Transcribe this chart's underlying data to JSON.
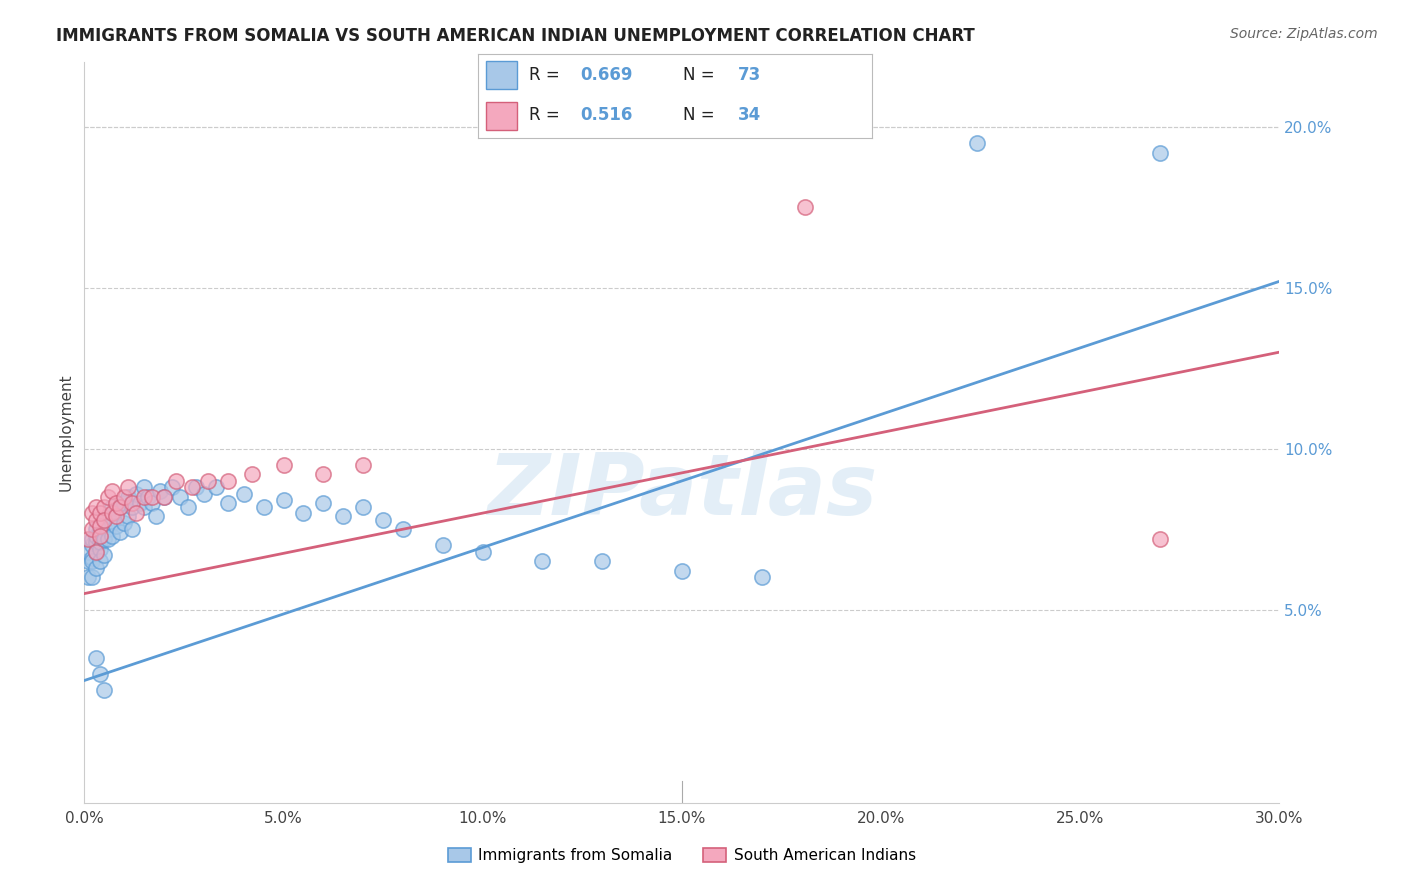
{
  "title": "IMMIGRANTS FROM SOMALIA VS SOUTH AMERICAN INDIAN UNEMPLOYMENT CORRELATION CHART",
  "source": "Source: ZipAtlas.com",
  "ylabel": "Unemployment",
  "watermark": "ZIPatlas",
  "xlim": [
    0.0,
    0.3
  ],
  "ylim": [
    -0.01,
    0.22
  ],
  "xticks": [
    0.0,
    0.05,
    0.1,
    0.15,
    0.2,
    0.25,
    0.3
  ],
  "xtick_labels": [
    "0.0%",
    "5.0%",
    "10.0%",
    "15.0%",
    "20.0%",
    "25.0%",
    "30.0%"
  ],
  "yticks_right": [
    0.05,
    0.1,
    0.15,
    0.2
  ],
  "ytick_labels_right": [
    "5.0%",
    "10.0%",
    "15.0%",
    "20.0%"
  ],
  "series1_color": "#a8c8e8",
  "series1_edge": "#5b9bd5",
  "series2_color": "#f4a8be",
  "series2_edge": "#d4607a",
  "series1_label": "Immigrants from Somalia",
  "series2_label": "South American Indians",
  "R1": "0.669",
  "N1": "73",
  "R2": "0.516",
  "N2": "34",
  "line1_color": "#5b9bd5",
  "line2_color": "#d4607a",
  "line1_x": [
    0.0,
    0.3
  ],
  "line1_y": [
    0.028,
    0.152
  ],
  "line2_x": [
    0.0,
    0.3
  ],
  "line2_y": [
    0.055,
    0.13
  ],
  "series1_x": [
    0.001,
    0.001,
    0.001,
    0.002,
    0.002,
    0.002,
    0.002,
    0.002,
    0.003,
    0.003,
    0.003,
    0.003,
    0.003,
    0.004,
    0.004,
    0.004,
    0.004,
    0.005,
    0.005,
    0.005,
    0.005,
    0.006,
    0.006,
    0.006,
    0.007,
    0.007,
    0.007,
    0.008,
    0.008,
    0.009,
    0.009,
    0.01,
    0.01,
    0.011,
    0.011,
    0.012,
    0.012,
    0.013,
    0.014,
    0.015,
    0.015,
    0.016,
    0.017,
    0.018,
    0.019,
    0.02,
    0.022,
    0.024,
    0.026,
    0.028,
    0.03,
    0.033,
    0.036,
    0.04,
    0.045,
    0.05,
    0.055,
    0.06,
    0.065,
    0.07,
    0.075,
    0.08,
    0.09,
    0.1,
    0.115,
    0.13,
    0.15,
    0.17,
    0.003,
    0.004,
    0.005,
    0.224,
    0.27
  ],
  "series1_y": [
    0.065,
    0.068,
    0.06,
    0.07,
    0.072,
    0.066,
    0.06,
    0.065,
    0.068,
    0.071,
    0.073,
    0.075,
    0.063,
    0.069,
    0.074,
    0.071,
    0.065,
    0.076,
    0.072,
    0.078,
    0.067,
    0.075,
    0.079,
    0.072,
    0.082,
    0.077,
    0.073,
    0.08,
    0.076,
    0.082,
    0.074,
    0.083,
    0.077,
    0.085,
    0.079,
    0.082,
    0.075,
    0.086,
    0.083,
    0.088,
    0.082,
    0.085,
    0.083,
    0.079,
    0.087,
    0.085,
    0.088,
    0.085,
    0.082,
    0.088,
    0.086,
    0.088,
    0.083,
    0.086,
    0.082,
    0.084,
    0.08,
    0.083,
    0.079,
    0.082,
    0.078,
    0.075,
    0.07,
    0.068,
    0.065,
    0.065,
    0.062,
    0.06,
    0.035,
    0.03,
    0.025,
    0.195,
    0.192
  ],
  "series2_x": [
    0.001,
    0.002,
    0.002,
    0.003,
    0.003,
    0.003,
    0.004,
    0.004,
    0.004,
    0.005,
    0.005,
    0.006,
    0.007,
    0.007,
    0.008,
    0.008,
    0.009,
    0.01,
    0.011,
    0.012,
    0.013,
    0.015,
    0.017,
    0.02,
    0.023,
    0.027,
    0.031,
    0.036,
    0.042,
    0.05,
    0.06,
    0.07,
    0.181,
    0.27
  ],
  "series2_y": [
    0.072,
    0.075,
    0.08,
    0.068,
    0.078,
    0.082,
    0.076,
    0.08,
    0.073,
    0.082,
    0.078,
    0.085,
    0.08,
    0.087,
    0.079,
    0.083,
    0.082,
    0.085,
    0.088,
    0.083,
    0.08,
    0.085,
    0.085,
    0.085,
    0.09,
    0.088,
    0.09,
    0.09,
    0.092,
    0.095,
    0.092,
    0.095,
    0.175,
    0.072
  ]
}
